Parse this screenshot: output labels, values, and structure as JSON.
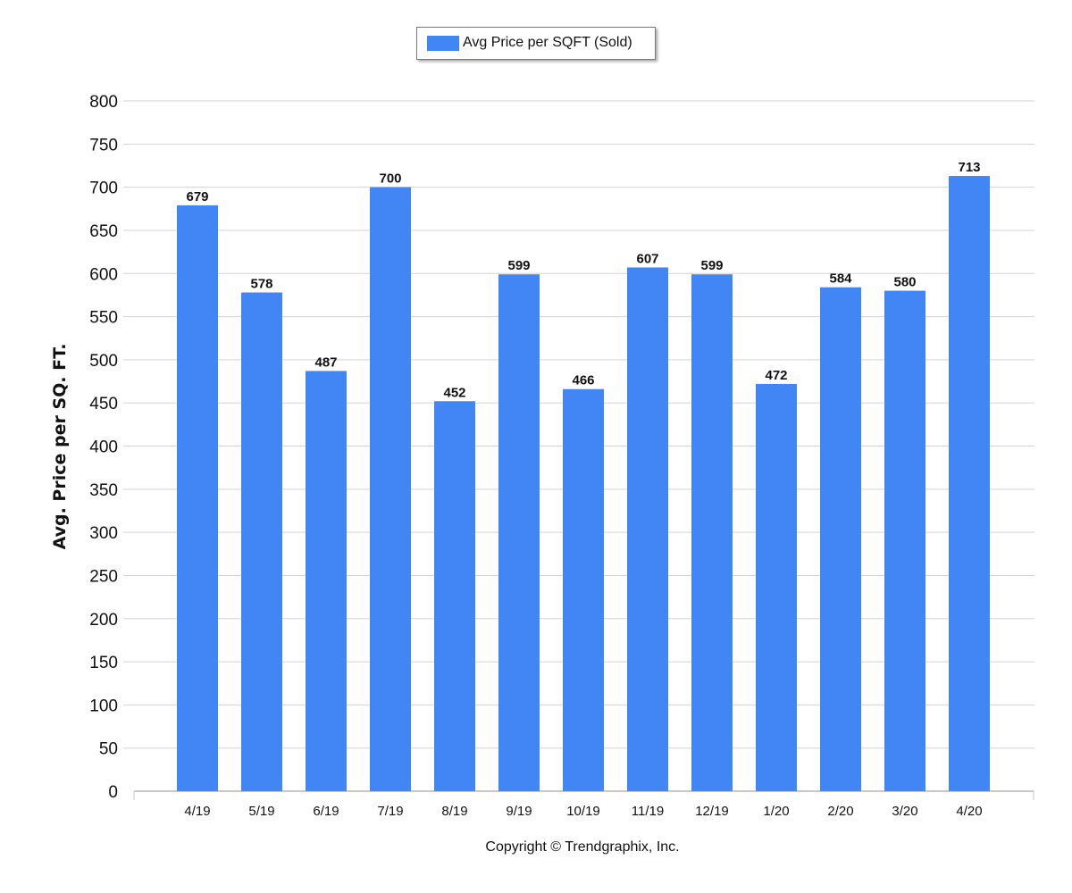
{
  "chart_data": {
    "type": "bar",
    "categories": [
      "4/19",
      "5/19",
      "6/19",
      "7/19",
      "8/19",
      "9/19",
      "10/19",
      "11/19",
      "12/19",
      "1/20",
      "2/20",
      "3/20",
      "4/20"
    ],
    "series": [
      {
        "name": "Avg Price per SQFT (Sold)",
        "values": [
          679,
          578,
          487,
          700,
          452,
          599,
          466,
          607,
          599,
          472,
          584,
          580,
          713
        ],
        "color": "#4285f4"
      }
    ],
    "ylabel": "Avg. Price per SQ. FT.",
    "xlabel": "",
    "ylim": [
      0,
      800
    ],
    "yticks": [
      0,
      50,
      100,
      150,
      200,
      250,
      300,
      350,
      400,
      450,
      500,
      550,
      600,
      650,
      700,
      750,
      800
    ],
    "grid": true,
    "legend_position": "top-center",
    "data_labels": true
  },
  "footer": {
    "copyright": "Copyright © Trendgraphix, Inc."
  }
}
